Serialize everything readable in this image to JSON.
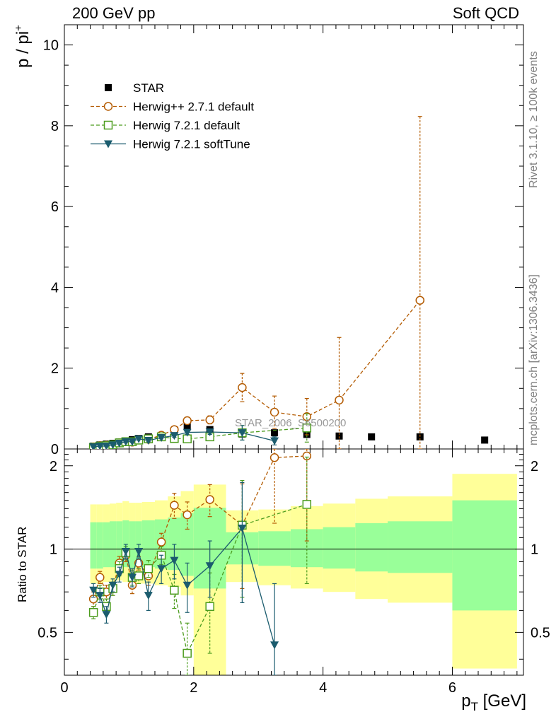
{
  "header": {
    "left_title": "200 GeV pp",
    "right_title": "Soft QCD"
  },
  "side_labels": {
    "rivet": "Rivet 3.1.10, ≥ 100k events",
    "source": "mcplots.cern.ch [arXiv:1306.3436]"
  },
  "watermark": "STAR_2006_S6500200",
  "colors": {
    "star": "#000000",
    "herwig271": "#b35a00",
    "herwig721": "#4c9c1e",
    "softtune": "#1b5c6e",
    "band_inner": "#99ff99",
    "band_outer": "#ffff99"
  },
  "chart_data": [
    {
      "type": "scatter",
      "name": "main",
      "ylabel": "p / pi⁺",
      "xlim": [
        0,
        7.1
      ],
      "ylim": [
        0,
        10.5
      ],
      "yticks": [
        0,
        2,
        4,
        6,
        8,
        10
      ],
      "legend_position": "top-left",
      "series": [
        {
          "name": "STAR",
          "x": [
            0.45,
            0.55,
            0.65,
            0.75,
            0.85,
            0.95,
            1.05,
            1.15,
            1.3,
            1.5,
            1.7,
            1.9,
            2.25,
            2.75,
            3.25,
            3.75,
            4.25,
            4.75,
            5.5,
            6.5
          ],
          "y": [
            0.07,
            0.1,
            0.12,
            0.14,
            0.17,
            0.19,
            0.23,
            0.26,
            0.3,
            0.32,
            0.36,
            0.55,
            0.48,
            0.37,
            0.4,
            0.36,
            0.32,
            0.3,
            0.3,
            0.22
          ]
        },
        {
          "name": "Herwig++ 2.7.1 default",
          "x": [
            0.45,
            0.55,
            0.65,
            0.75,
            0.85,
            0.95,
            1.05,
            1.15,
            1.3,
            1.5,
            1.7,
            1.9,
            2.25,
            2.75,
            3.25,
            3.75,
            4.25,
            5.5
          ],
          "y": [
            0.05,
            0.08,
            0.09,
            0.1,
            0.15,
            0.18,
            0.17,
            0.23,
            0.24,
            0.34,
            0.48,
            0.7,
            0.72,
            1.52,
            0.91,
            0.8,
            1.21,
            3.68
          ],
          "err": [
            0.01,
            0.01,
            0.01,
            0.01,
            0.02,
            0.02,
            0.02,
            0.03,
            0.03,
            0.04,
            0.05,
            0.08,
            0.1,
            0.35,
            0.4,
            0.45,
            1.55,
            4.55
          ]
        },
        {
          "name": "Herwig 7.2.1 default",
          "x": [
            0.45,
            0.55,
            0.65,
            0.75,
            0.85,
            0.95,
            1.05,
            1.15,
            1.3,
            1.5,
            1.7,
            1.9,
            2.25,
            2.75,
            3.75
          ],
          "y": [
            0.04,
            0.07,
            0.08,
            0.1,
            0.15,
            0.18,
            0.18,
            0.22,
            0.25,
            0.3,
            0.26,
            0.25,
            0.3,
            0.4,
            0.52
          ],
          "err": [
            0.01,
            0.01,
            0.01,
            0.01,
            0.02,
            0.02,
            0.02,
            0.02,
            0.03,
            0.03,
            0.04,
            0.05,
            0.06,
            0.18,
            0.35
          ]
        },
        {
          "name": "Herwig 7.2.1 softTune",
          "x": [
            0.45,
            0.55,
            0.65,
            0.75,
            0.85,
            0.95,
            1.05,
            1.15,
            1.3,
            1.5,
            1.7,
            1.9,
            2.25,
            2.75,
            3.25
          ],
          "y": [
            0.05,
            0.07,
            0.07,
            0.1,
            0.14,
            0.18,
            0.18,
            0.25,
            0.21,
            0.28,
            0.33,
            0.41,
            0.42,
            0.4,
            0.2
          ],
          "err": [
            0.01,
            0.01,
            0.01,
            0.01,
            0.02,
            0.02,
            0.02,
            0.02,
            0.03,
            0.03,
            0.04,
            0.05,
            0.06,
            0.18,
            0.1
          ]
        }
      ]
    },
    {
      "type": "scatter",
      "name": "ratio",
      "ylabel": "Ratio to STAR",
      "xlabel": "p_T [GeV]",
      "xlim": [
        0,
        7.1
      ],
      "ylim": [
        0.35,
        2.3
      ],
      "yticks": [
        0.5,
        1,
        2
      ],
      "xticks": [
        0,
        2,
        4,
        6
      ],
      "bands": {
        "edges": [
          0.4,
          0.5,
          0.6,
          0.7,
          0.8,
          0.9,
          1.0,
          1.1,
          1.2,
          1.4,
          1.6,
          1.8,
          2.0,
          2.5,
          3.0,
          3.5,
          4.0,
          4.5,
          5.0,
          6.0,
          7.0
        ],
        "inner_lo": [
          0.85,
          0.85,
          0.86,
          0.86,
          0.87,
          0.86,
          0.85,
          0.86,
          0.86,
          0.85,
          0.84,
          0.8,
          0.72,
          0.88,
          0.87,
          0.86,
          0.85,
          0.83,
          0.82,
          0.6
        ],
        "inner_hi": [
          1.25,
          1.25,
          1.25,
          1.26,
          1.26,
          1.27,
          1.26,
          1.26,
          1.27,
          1.28,
          1.3,
          1.35,
          1.41,
          1.15,
          1.16,
          1.18,
          1.2,
          1.24,
          1.26,
          1.5
        ],
        "outer_lo": [
          0.75,
          0.75,
          0.76,
          0.76,
          0.77,
          0.76,
          0.74,
          0.75,
          0.75,
          0.74,
          0.73,
          0.68,
          0.31,
          0.76,
          0.74,
          0.72,
          0.7,
          0.66,
          0.64,
          0.37
        ],
        "outer_hi": [
          1.45,
          1.45,
          1.45,
          1.46,
          1.47,
          1.49,
          1.47,
          1.47,
          1.48,
          1.5,
          1.55,
          1.62,
          1.71,
          1.38,
          1.39,
          1.43,
          1.46,
          1.52,
          1.55,
          1.87
        ]
      },
      "series": [
        {
          "name": "Herwig++ 2.7.1 default",
          "x": [
            0.45,
            0.55,
            0.65,
            0.75,
            0.85,
            0.95,
            1.05,
            1.15,
            1.3,
            1.5,
            1.7,
            1.9,
            2.25,
            2.75,
            3.25,
            3.75
          ],
          "y": [
            0.66,
            0.79,
            0.7,
            0.72,
            0.89,
            0.95,
            0.74,
            0.89,
            0.8,
            1.06,
            1.44,
            1.33,
            1.51,
            1.22,
            2.14,
            2.17
          ],
          "err": [
            0.04,
            0.04,
            0.04,
            0.04,
            0.05,
            0.05,
            0.05,
            0.05,
            0.06,
            0.08,
            0.15,
            0.15,
            0.2,
            0.5,
            0.9,
            1.1
          ]
        },
        {
          "name": "Herwig 7.2.1 default",
          "x": [
            0.45,
            0.55,
            0.65,
            0.75,
            0.85,
            0.95,
            1.05,
            1.15,
            1.3,
            1.5,
            1.7,
            1.9,
            2.25,
            2.75,
            3.75
          ],
          "y": [
            0.59,
            0.7,
            0.62,
            0.72,
            0.85,
            0.97,
            0.79,
            0.8,
            0.85,
            0.95,
            0.71,
            0.42,
            0.62,
            1.22,
            1.45
          ],
          "err": [
            0.03,
            0.04,
            0.04,
            0.04,
            0.05,
            0.05,
            0.05,
            0.05,
            0.06,
            0.07,
            0.1,
            0.12,
            0.2,
            0.55,
            0.7
          ]
        },
        {
          "name": "Herwig 7.2.1 softTune",
          "x": [
            0.45,
            0.55,
            0.65,
            0.75,
            0.85,
            0.95,
            1.05,
            1.15,
            1.3,
            1.5,
            1.7,
            1.9,
            2.25,
            2.75,
            3.25
          ],
          "y": [
            0.71,
            0.68,
            0.58,
            0.74,
            0.81,
            0.98,
            0.79,
            0.98,
            0.68,
            0.85,
            0.91,
            0.74,
            0.87,
            1.19,
            0.45
          ],
          "err": [
            0.04,
            0.04,
            0.04,
            0.04,
            0.05,
            0.06,
            0.06,
            0.06,
            0.08,
            0.1,
            0.13,
            0.15,
            0.2,
            0.55,
            0.3
          ]
        }
      ]
    }
  ]
}
